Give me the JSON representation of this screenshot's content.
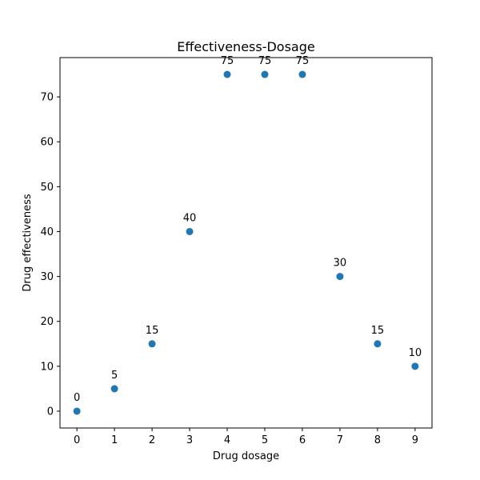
{
  "chart_data": {
    "type": "scatter",
    "title": "Effectiveness-Dosage",
    "xlabel": "Drug dosage",
    "ylabel": "Drug effectiveness",
    "x": [
      0,
      1,
      2,
      3,
      4,
      5,
      6,
      7,
      8,
      9
    ],
    "y": [
      0,
      5,
      15,
      40,
      75,
      75,
      75,
      30,
      15,
      10
    ],
    "point_labels": [
      "0",
      "5",
      "15",
      "40",
      "75",
      "75",
      "75",
      "30",
      "15",
      "10"
    ],
    "xlim": [
      -0.45,
      9.45
    ],
    "ylim": [
      -3.75,
      78.75
    ],
    "xticks": [
      0,
      1,
      2,
      3,
      4,
      5,
      6,
      7,
      8,
      9
    ],
    "xtick_labels": [
      "0",
      "1",
      "2",
      "3",
      "4",
      "5",
      "6",
      "7",
      "8",
      "9"
    ],
    "yticks": [
      0,
      10,
      20,
      30,
      40,
      50,
      60,
      70
    ],
    "ytick_labels": [
      "0",
      "10",
      "20",
      "30",
      "40",
      "50",
      "60",
      "70"
    ],
    "grid": false,
    "legend": "none",
    "marker_color": "#1f77b4"
  }
}
